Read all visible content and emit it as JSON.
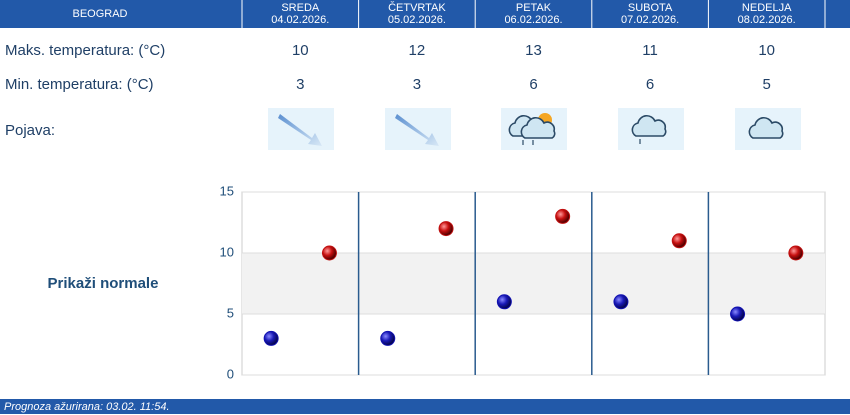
{
  "table": {
    "city": "BEOGRAD",
    "columns": [
      {
        "day": "SREDA",
        "date": "04.02.2026."
      },
      {
        "day": "ČETVRTAK",
        "date": "05.02.2026."
      },
      {
        "day": "PETAK",
        "date": "06.02.2026."
      },
      {
        "day": "SUBOTA",
        "date": "07.02.2026."
      },
      {
        "day": "NEDELJA",
        "date": "08.02.2026."
      }
    ],
    "rows": [
      {
        "label": "Maks. temperatura: (°C)",
        "values": [
          10,
          12,
          13,
          11,
          10
        ]
      },
      {
        "label": "Min. temperatura: (°C)",
        "values": [
          3,
          3,
          6,
          6,
          5
        ]
      },
      {
        "label": "Pojava:"
      }
    ]
  },
  "normals_button": "Prikaži normale",
  "footer": "Prognoza ažurirana:  03.02. 11:54.",
  "chart_data": {
    "type": "scatter",
    "categories": [
      null,
      null,
      null,
      null,
      null
    ],
    "series": [
      {
        "color": "#1010b0",
        "values": [
          3,
          3,
          6,
          6,
          5
        ]
      },
      {
        "color": "#c01010",
        "values": [
          10,
          12,
          13,
          11,
          10
        ]
      }
    ],
    "normal_band": [
      5,
      10
    ],
    "ylim": [
      0,
      15
    ],
    "yticks": [
      0,
      5,
      10,
      15
    ],
    "grid": true
  }
}
